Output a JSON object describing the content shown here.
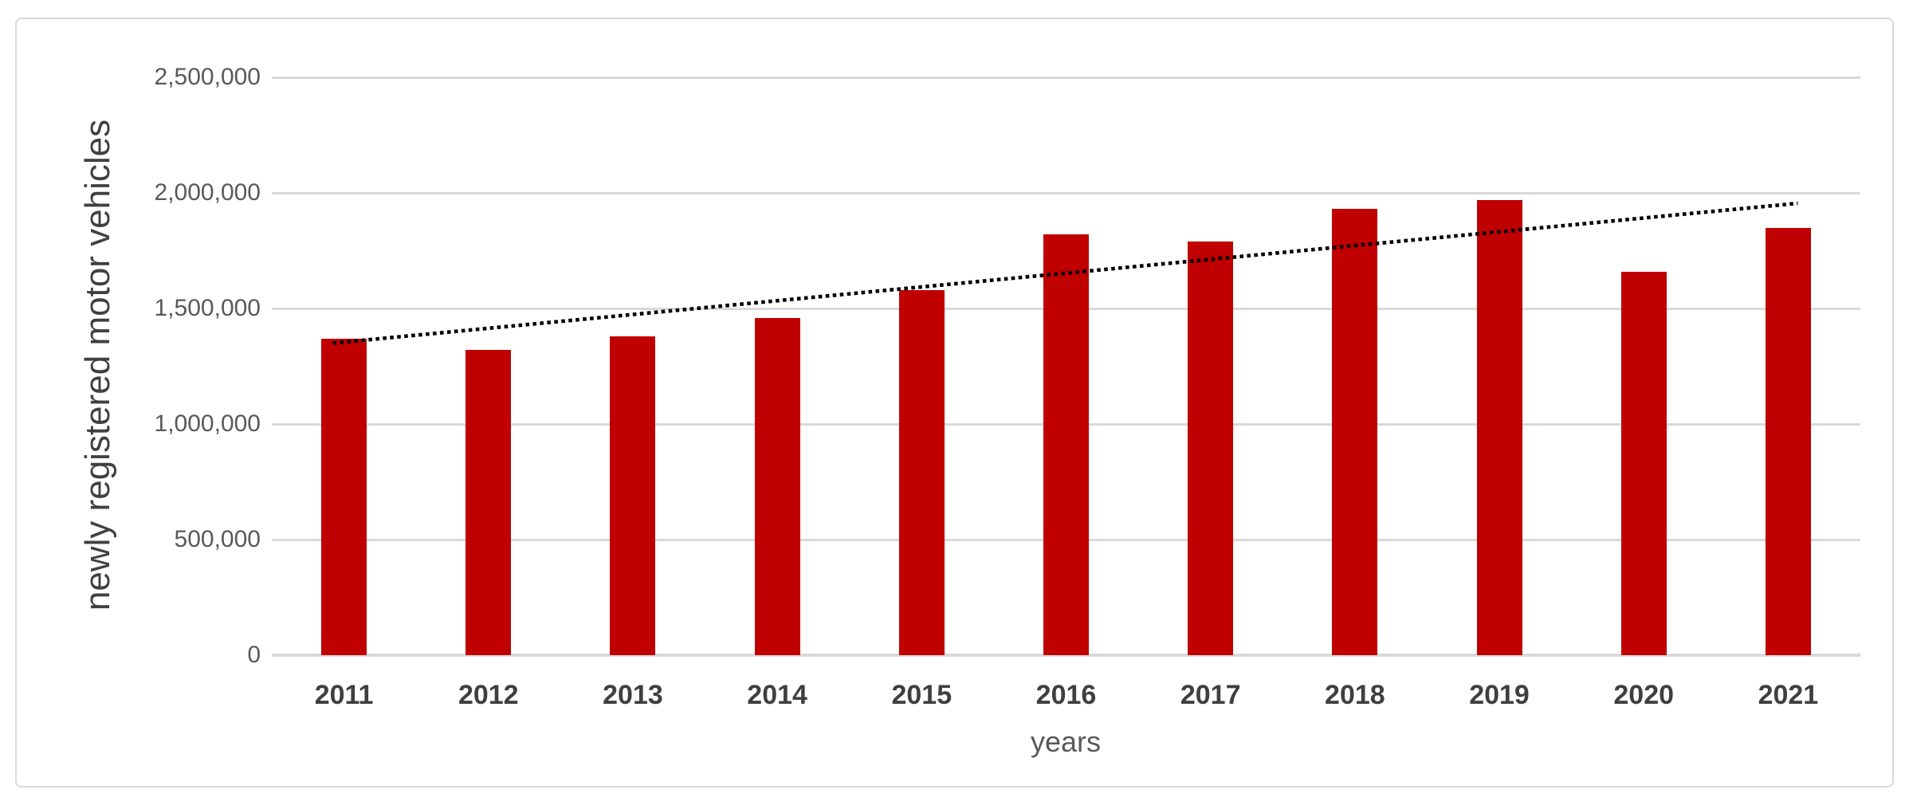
{
  "chart_data": {
    "type": "bar",
    "title": "",
    "xlabel": "years",
    "ylabel": "newly registered motor vehicles",
    "categories": [
      "2011",
      "2012",
      "2013",
      "2014",
      "2015",
      "2016",
      "2017",
      "2018",
      "2019",
      "2020",
      "2021"
    ],
    "values": [
      1370000,
      1320000,
      1380000,
      1460000,
      1580000,
      1820000,
      1790000,
      1930000,
      1970000,
      1660000,
      1850000
    ],
    "bar_color": "#C00000",
    "ylim": [
      0,
      2500000
    ],
    "y_tick_interval": 500000,
    "y_ticks": [
      {
        "value": 0,
        "label": "0"
      },
      {
        "value": 500000,
        "label": "500,000"
      },
      {
        "value": 1000000,
        "label": "1,000,000"
      },
      {
        "value": 1500000,
        "label": "1,500,000"
      },
      {
        "value": 2000000,
        "label": "2,000,000"
      },
      {
        "value": 2500000,
        "label": "2,500,000"
      }
    ],
    "grid": true,
    "legend": false,
    "trendline": {
      "type": "linear",
      "style": "dotted",
      "color": "#000000",
      "start_category": "2011",
      "start_value": 1350000,
      "end_category": "2021",
      "end_value": 1955000
    }
  }
}
